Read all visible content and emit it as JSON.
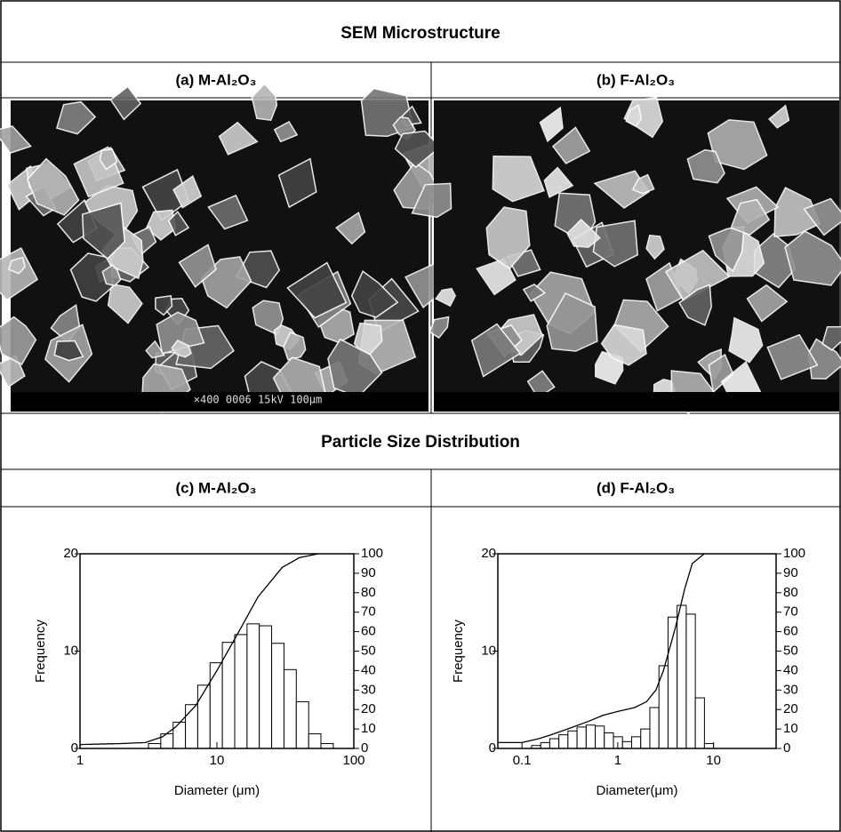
{
  "sem": {
    "title": "SEM Microstructure",
    "panels": [
      {
        "label": "(a) M-Al₂O₃",
        "image_text": "×400 0006 15kV 100μm"
      },
      {
        "label": "(b) F-Al₂O₃"
      }
    ]
  },
  "section_title": "Particle Size Distribution",
  "chart_data": [
    {
      "type": "histogram",
      "title": "(c) M-Al₂O₃",
      "xlabel": "Diameter (μm)",
      "ylabel": "Frequency",
      "xscale": "log",
      "xlim": [
        1,
        100
      ],
      "xticks": [
        1,
        10,
        100
      ],
      "ylim": [
        0,
        20
      ],
      "yticks": [
        0,
        10,
        20
      ],
      "y2lim": [
        0,
        100
      ],
      "y2ticks": [
        0,
        10,
        20,
        30,
        40,
        50,
        60,
        70,
        80,
        90,
        100
      ],
      "color": "#ffffff",
      "edgecolor": "#000000",
      "bins": [
        3.16,
        3.89,
        4.79,
        5.89,
        7.24,
        8.91,
        10.96,
        13.49,
        16.6,
        20.4,
        25.1,
        30.9,
        38.0,
        46.8,
        57.5,
        70.8
      ],
      "values": [
        0.5,
        1.5,
        2.7,
        4.5,
        6.5,
        8.8,
        10.9,
        11.7,
        12.8,
        12.6,
        10.8,
        8.1,
        4.8,
        1.5,
        0.5
      ],
      "line": {
        "axis": "y2",
        "color": "#000000",
        "x": [
          1,
          2,
          3,
          4,
          5,
          7,
          10,
          15,
          20,
          30,
          40,
          55
        ],
        "values": [
          2,
          2.5,
          3,
          6,
          11,
          22,
          40,
          62,
          78,
          93,
          98,
          100
        ]
      }
    },
    {
      "type": "histogram",
      "title": "(d) F-Al₂O₃",
      "xlabel": "Diameter(μm)",
      "ylabel": "Frequency",
      "xscale": "log",
      "xlim": [
        0.056,
        45
      ],
      "xticks": [
        0.1,
        1,
        10
      ],
      "ylim": [
        0,
        20
      ],
      "yticks": [
        0,
        10,
        20
      ],
      "y2lim": [
        0,
        100
      ],
      "y2ticks": [
        0,
        10,
        20,
        30,
        40,
        50,
        60,
        70,
        80,
        90,
        100
      ],
      "color": "#ffffff",
      "edgecolor": "#000000",
      "bins": [
        0.126,
        0.157,
        0.195,
        0.243,
        0.302,
        0.376,
        0.468,
        0.582,
        0.724,
        0.902,
        1.122,
        1.396,
        1.738,
        2.163,
        2.692,
        3.35,
        4.169,
        5.188,
        6.457,
        8.035,
        10.0
      ],
      "values": [
        0.3,
        0.6,
        1.0,
        1.4,
        1.8,
        2.2,
        2.4,
        2.3,
        1.6,
        1.2,
        0.7,
        1.2,
        2.0,
        4.2,
        8.5,
        13.5,
        14.7,
        13.8,
        5.2,
        0.5
      ],
      "line": {
        "axis": "y2",
        "color": "#000000",
        "x": [
          0.056,
          0.1,
          0.15,
          0.2,
          0.3,
          0.5,
          0.7,
          1,
          1.5,
          2,
          2.5,
          3,
          4,
          5,
          6,
          8
        ],
        "values": [
          3,
          3,
          5,
          7,
          10,
          14,
          17,
          19,
          21,
          24,
          30,
          40,
          62,
          82,
          95,
          100
        ]
      }
    }
  ]
}
